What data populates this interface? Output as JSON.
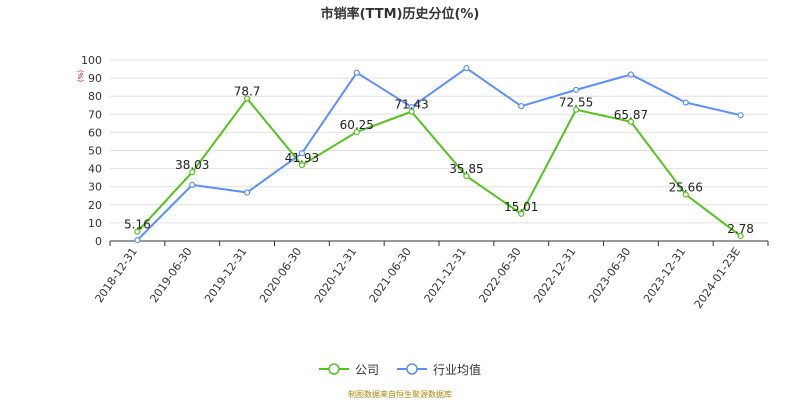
{
  "chart_data": {
    "type": "line",
    "title": "市销率(TTM)历史分位(%)",
    "ylabel": "(%)",
    "ylim": [
      0,
      100
    ],
    "yticks": [
      0,
      10,
      20,
      30,
      40,
      50,
      60,
      70,
      80,
      90,
      100
    ],
    "grid": true,
    "legend_position": "bottom",
    "categories": [
      "2018-12-31",
      "2019-06-30",
      "2019-12-31",
      "2020-06-30",
      "2020-12-31",
      "2021-06-30",
      "2021-12-31",
      "2022-06-30",
      "2022-12-31",
      "2023-06-30",
      "2023-12-31",
      "2024-01-23E"
    ],
    "series": [
      {
        "name": "公司",
        "color": "#52c41a",
        "labeled": true,
        "values": [
          5.16,
          38.03,
          78.7,
          41.93,
          60.25,
          71.43,
          35.85,
          15.01,
          72.55,
          65.87,
          25.66,
          2.78
        ],
        "labels": [
          "5.16",
          "38.03",
          "78.7",
          "41.93",
          "60.25",
          "71.43",
          "35.85",
          "15.01",
          "72.55",
          "65.87",
          "25.66",
          "2.78"
        ]
      },
      {
        "name": "行业均值",
        "color": "#5b8ff9",
        "labeled": false,
        "values": [
          0.5,
          31,
          26.8,
          48.5,
          93,
          74,
          95.5,
          74.5,
          83.5,
          92,
          76.5,
          69.5
        ]
      }
    ]
  },
  "footer": {
    "source": "制图数据来自恒生聚源数据库",
    "source_color": "#b8860b"
  }
}
